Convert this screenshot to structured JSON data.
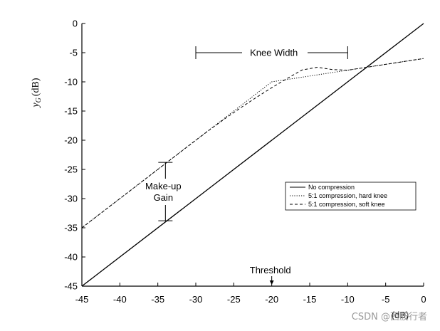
{
  "chart_data": {
    "type": "line",
    "ylabel": "y",
    "ylabel_sub": "G",
    "ylabel_unit": "(dB)",
    "xlabel": "(dB)",
    "xlim": [
      -45,
      0
    ],
    "ylim": [
      -45,
      0
    ],
    "x_ticks": [
      -45,
      -40,
      -35,
      -30,
      -25,
      -20,
      -15,
      -10,
      -5,
      0
    ],
    "y_ticks": [
      0,
      -5,
      -10,
      -15,
      -20,
      -25,
      -30,
      -35,
      -40,
      -45
    ],
    "grid": false,
    "legend_position": "lower-right",
    "series": [
      {
        "name": "No compression",
        "style": "solid",
        "x": [
          -45,
          0
        ],
        "y": [
          -45,
          0
        ]
      },
      {
        "name": "5:1 compression, hard knee",
        "style": "dotted",
        "x": [
          -45,
          -20,
          0
        ],
        "y": [
          -35,
          -10,
          -6
        ]
      },
      {
        "name": "5:1 compression, soft knee",
        "style": "dashed",
        "x": [
          -45,
          -30,
          -28,
          -26,
          -24,
          -22,
          -20,
          -18,
          -16,
          -14,
          -12,
          -10,
          0
        ],
        "y": [
          -35,
          -20,
          -18.04,
          -16.16,
          -14.36,
          -12.64,
          -11,
          -9.44,
          -7.96,
          -7.5,
          -7.9,
          -8,
          -6
        ]
      }
    ],
    "annotations": {
      "knee_width": {
        "label": "Knee Width",
        "x_range": [
          -30,
          -10
        ],
        "y": -5
      },
      "makeup_gain": {
        "line1": "Make-up",
        "line2": "Gain",
        "x": -34,
        "y_range": [
          -33.8,
          -23.8
        ]
      },
      "threshold": {
        "label": "Threshold",
        "x": -20
      }
    }
  },
  "watermark": "CSDN @西胺行者"
}
